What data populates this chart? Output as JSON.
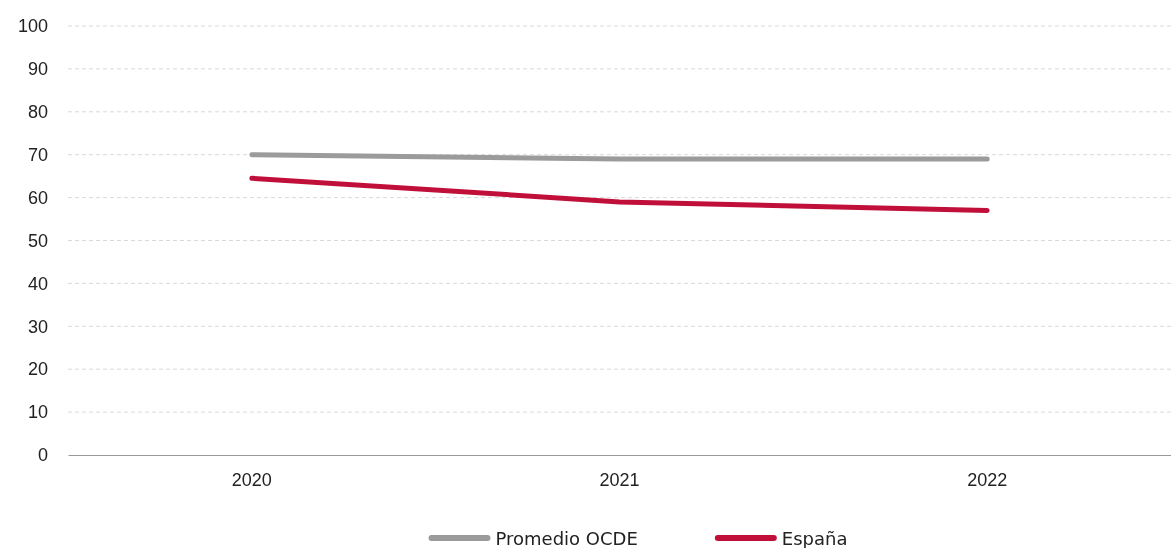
{
  "chart_data": {
    "type": "line",
    "categories": [
      "2020",
      "2021",
      "2022"
    ],
    "series": [
      {
        "name": "Promedio OCDE",
        "color": "#9b9b9b",
        "values": [
          70,
          69,
          69
        ]
      },
      {
        "name": "España",
        "color": "#c0103a",
        "values": [
          64.5,
          59,
          57
        ]
      }
    ],
    "ylim": [
      0,
      100
    ],
    "yticks": [
      0,
      10,
      20,
      30,
      40,
      50,
      60,
      70,
      80,
      90,
      100
    ],
    "grid": "y",
    "legend": "bottom",
    "marker": "none",
    "line_style": "solid"
  }
}
